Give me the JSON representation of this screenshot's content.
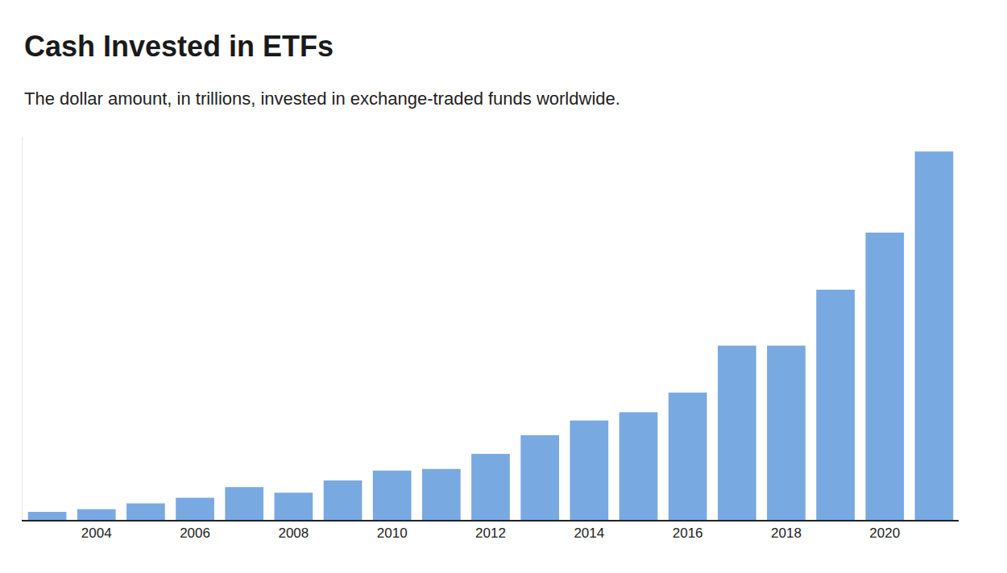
{
  "chart_data": {
    "type": "bar",
    "title": "Cash Invested in ETFs",
    "subtitle": "The dollar amount, in trillions, invested in exchange-traded funds worldwide.",
    "x": [
      2003,
      2004,
      2005,
      2006,
      2007,
      2008,
      2009,
      2010,
      2011,
      2012,
      2013,
      2014,
      2015,
      2016,
      2017,
      2018,
      2019,
      2020,
      2021
    ],
    "values": [
      0.22,
      0.29,
      0.45,
      0.6,
      0.89,
      0.74,
      1.07,
      1.34,
      1.38,
      1.79,
      2.3,
      2.7,
      2.92,
      3.46,
      4.73,
      4.73,
      6.25,
      7.8,
      10.0
    ],
    "color": "#79a9e1",
    "xlim": [
      2002.5,
      2021.5
    ],
    "xticks": [
      2004,
      2006,
      2008,
      2010,
      2012,
      2014,
      2016,
      2018,
      2020
    ],
    "ylim": [
      0,
      10.4
    ],
    "yticks": [],
    "grid": false,
    "tick_labels": "x"
  }
}
